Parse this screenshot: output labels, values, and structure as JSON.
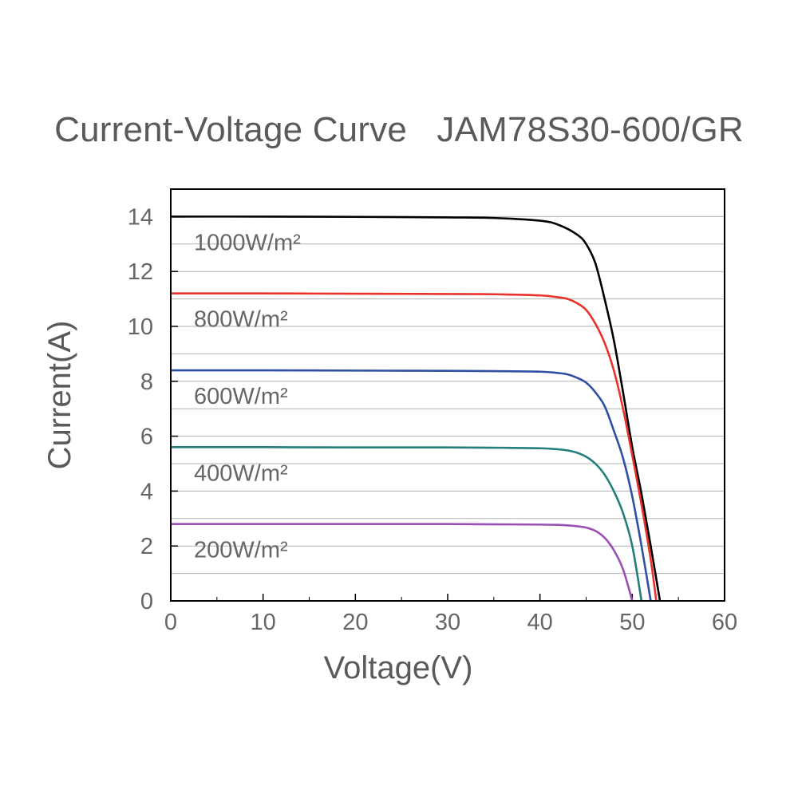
{
  "chart_data": {
    "type": "line",
    "title": "Current-Voltage Curve   JAM78S30-600/GR",
    "xlabel": "Voltage(V)",
    "ylabel": "Current(A)",
    "xlim": [
      0,
      60
    ],
    "ylim": [
      0,
      15
    ],
    "xticks": [
      "0",
      "10",
      "20",
      "30",
      "40",
      "50",
      "60"
    ],
    "yticks": [
      "0",
      "2",
      "4",
      "6",
      "8",
      "10",
      "12",
      "14"
    ],
    "grid": "horizontal",
    "series": [
      {
        "name": "1000W/m²",
        "color": "#000000",
        "x": [
          0,
          10,
          20,
          30,
          35,
          40,
          42,
          44,
          45,
          46,
          47,
          48,
          49,
          50,
          51,
          52,
          53
        ],
        "y": [
          14.0,
          14.0,
          13.99,
          13.97,
          13.95,
          13.85,
          13.7,
          13.35,
          13.0,
          12.3,
          11.0,
          9.5,
          7.6,
          5.6,
          3.9,
          2.0,
          0
        ]
      },
      {
        "name": "800W/m²",
        "color": "#e8322b",
        "x": [
          0,
          10,
          20,
          30,
          35,
          40,
          42,
          43,
          44,
          45,
          46,
          47,
          48,
          49,
          50,
          51,
          52,
          52.6
        ],
        "y": [
          11.2,
          11.2,
          11.19,
          11.18,
          11.17,
          11.13,
          11.06,
          11.0,
          10.85,
          10.6,
          10.1,
          9.4,
          8.4,
          7.0,
          5.3,
          3.5,
          1.5,
          0
        ]
      },
      {
        "name": "600W/m²",
        "color": "#2e4fa3",
        "x": [
          0,
          10,
          20,
          30,
          35,
          40,
          42,
          43,
          44,
          45,
          46,
          47,
          48,
          49,
          50,
          51,
          52
        ],
        "y": [
          8.4,
          8.4,
          8.39,
          8.38,
          8.37,
          8.35,
          8.3,
          8.25,
          8.13,
          7.95,
          7.6,
          7.1,
          6.2,
          5.2,
          3.8,
          2.0,
          0
        ]
      },
      {
        "name": "400W/m²",
        "color": "#237f7a",
        "x": [
          0,
          10,
          20,
          30,
          35,
          40,
          42,
          43,
          44,
          45,
          46,
          47,
          48,
          49,
          50,
          51
        ],
        "y": [
          5.6,
          5.6,
          5.59,
          5.59,
          5.58,
          5.56,
          5.52,
          5.48,
          5.4,
          5.25,
          5.0,
          4.6,
          4.0,
          3.2,
          2.0,
          0
        ]
      },
      {
        "name": "200W/m²",
        "color": "#9b4fb5",
        "x": [
          0,
          10,
          20,
          30,
          35,
          40,
          42,
          43,
          44,
          45,
          46,
          47,
          48,
          49,
          50
        ],
        "y": [
          2.8,
          2.8,
          2.8,
          2.8,
          2.79,
          2.78,
          2.77,
          2.75,
          2.72,
          2.67,
          2.55,
          2.3,
          1.85,
          1.15,
          0
        ]
      }
    ]
  }
}
